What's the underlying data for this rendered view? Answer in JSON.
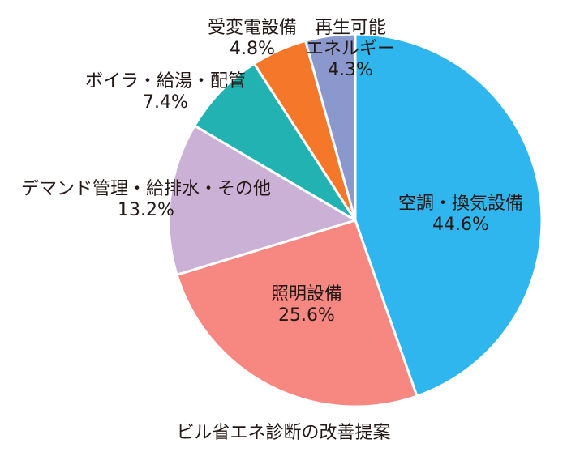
{
  "chart_data": {
    "type": "pie",
    "title": "ビル省エネ診断の改善提案",
    "start": "12 o'clock",
    "direction": "clockwise",
    "slices": [
      {
        "label": "空調・換気設備",
        "label_lines": [
          "空調・換気設備"
        ],
        "value": 44.6,
        "value_label": "44.6%",
        "color": "#30b6ee"
      },
      {
        "label": "照明設備",
        "label_lines": [
          "照明設備"
        ],
        "value": 25.6,
        "value_label": "25.6%",
        "color": "#f68781"
      },
      {
        "label": "デマンド管理・給排水・その他",
        "label_lines": [
          "デマンド管理・給排水・その他"
        ],
        "value": 13.2,
        "value_label": "13.2%",
        "color": "#ccb1d6"
      },
      {
        "label": "ボイラ・給湯・配管",
        "label_lines": [
          "ボイラ・給湯・配管"
        ],
        "value": 7.4,
        "value_label": "7.4%",
        "color": "#22b2b1"
      },
      {
        "label": "受変電設備",
        "label_lines": [
          "受変電設備"
        ],
        "value": 4.8,
        "value_label": "4.8%",
        "color": "#f5782a"
      },
      {
        "label": "再生可能エネルギー",
        "label_lines": [
          "再生可能",
          "エネルギー"
        ],
        "value": 4.3,
        "value_label": "4.3%",
        "color": "#8b98cd"
      }
    ]
  }
}
